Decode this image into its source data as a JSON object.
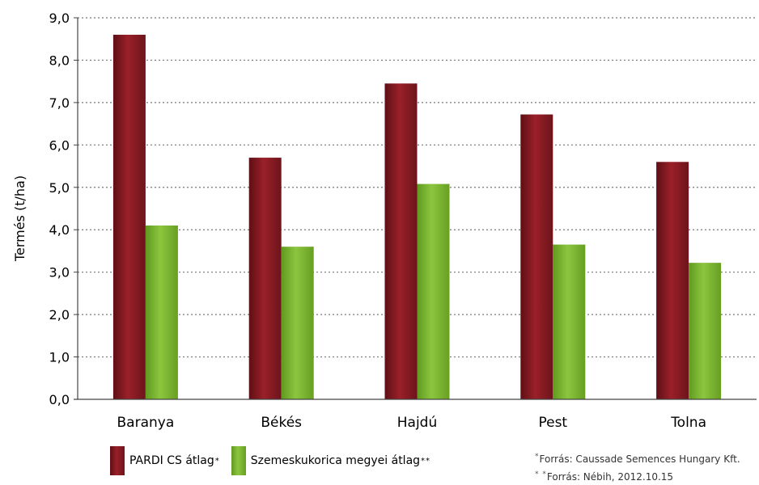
{
  "chart_data": {
    "type": "bar",
    "categories": [
      "Baranya",
      "Békés",
      "Hajdú",
      "Pest",
      "Tolna"
    ],
    "series": [
      {
        "name": "PARDI CS átlag",
        "marker": "*",
        "color": "#8b1a22",
        "values": [
          8.6,
          5.7,
          7.45,
          6.72,
          5.6
        ]
      },
      {
        "name": "Szemeskukorica megyei átlag",
        "marker": "**",
        "color": "#7db72f",
        "values": [
          4.1,
          3.6,
          5.08,
          3.65,
          3.22
        ]
      }
    ],
    "ylabel": "Termés (t/ha)",
    "ylim": [
      0,
      9
    ],
    "yticks": [
      "0,0",
      "1,0",
      "2,0",
      "3,0",
      "4,0",
      "5,0",
      "6,0",
      "7,0",
      "8,0",
      "9,0"
    ],
    "grid": true,
    "legend_position": "bottom-left"
  },
  "footnotes": [
    {
      "marker": "*",
      "text": "Forrás:  Caussade Semences Hungary Kft."
    },
    {
      "marker": "* *",
      "text": "Forrás:  Nébih, 2012.10.15"
    }
  ]
}
